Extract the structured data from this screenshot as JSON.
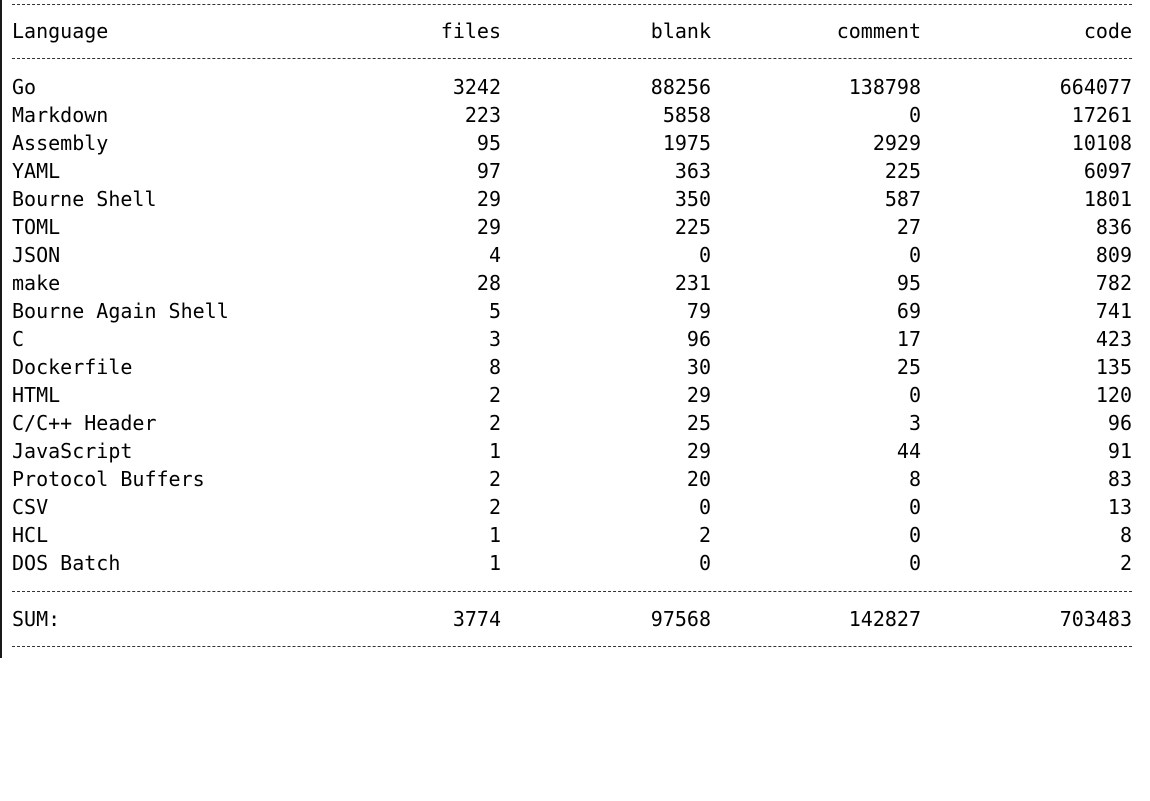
{
  "headers": {
    "language": "Language",
    "files": "files",
    "blank": "blank",
    "comment": "comment",
    "code": "code"
  },
  "rows": [
    {
      "language": "Go",
      "files": "3242",
      "blank": "88256",
      "comment": "138798",
      "code": "664077"
    },
    {
      "language": "Markdown",
      "files": "223",
      "blank": "5858",
      "comment": "0",
      "code": "17261"
    },
    {
      "language": "Assembly",
      "files": "95",
      "blank": "1975",
      "comment": "2929",
      "code": "10108"
    },
    {
      "language": "YAML",
      "files": "97",
      "blank": "363",
      "comment": "225",
      "code": "6097"
    },
    {
      "language": "Bourne Shell",
      "files": "29",
      "blank": "350",
      "comment": "587",
      "code": "1801"
    },
    {
      "language": "TOML",
      "files": "29",
      "blank": "225",
      "comment": "27",
      "code": "836"
    },
    {
      "language": "JSON",
      "files": "4",
      "blank": "0",
      "comment": "0",
      "code": "809"
    },
    {
      "language": "make",
      "files": "28",
      "blank": "231",
      "comment": "95",
      "code": "782"
    },
    {
      "language": "Bourne Again Shell",
      "files": "5",
      "blank": "79",
      "comment": "69",
      "code": "741"
    },
    {
      "language": "C",
      "files": "3",
      "blank": "96",
      "comment": "17",
      "code": "423"
    },
    {
      "language": "Dockerfile",
      "files": "8",
      "blank": "30",
      "comment": "25",
      "code": "135"
    },
    {
      "language": "HTML",
      "files": "2",
      "blank": "29",
      "comment": "0",
      "code": "120"
    },
    {
      "language": "C/C++ Header",
      "files": "2",
      "blank": "25",
      "comment": "3",
      "code": "96"
    },
    {
      "language": "JavaScript",
      "files": "1",
      "blank": "29",
      "comment": "44",
      "code": "91"
    },
    {
      "language": "Protocol Buffers",
      "files": "2",
      "blank": "20",
      "comment": "8",
      "code": "83"
    },
    {
      "language": "CSV",
      "files": "2",
      "blank": "0",
      "comment": "0",
      "code": "13"
    },
    {
      "language": "HCL",
      "files": "1",
      "blank": "2",
      "comment": "0",
      "code": "8"
    },
    {
      "language": "DOS Batch",
      "files": "1",
      "blank": "0",
      "comment": "0",
      "code": "2"
    }
  ],
  "sum": {
    "label": "SUM:",
    "files": "3774",
    "blank": "97568",
    "comment": "142827",
    "code": "703483"
  }
}
